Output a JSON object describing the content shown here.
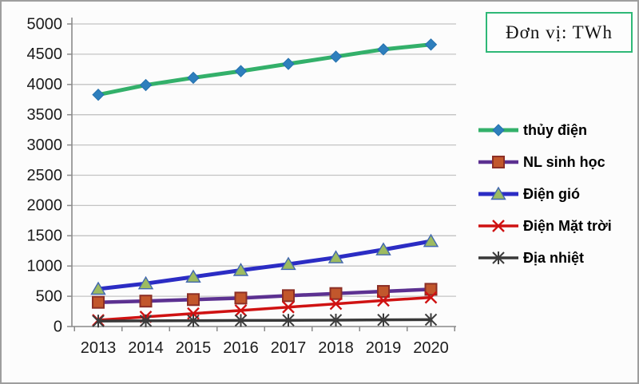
{
  "unit_box": {
    "label": "Đơn vị: TWh",
    "border_color": "#2eb877"
  },
  "chart_data": {
    "type": "line",
    "title": "",
    "xlabel": "",
    "ylabel": "",
    "unit": "TWh",
    "categories": [
      "2013",
      "2014",
      "2015",
      "2016",
      "2017",
      "2018",
      "2019",
      "2020"
    ],
    "series": [
      {
        "name": "thủy điện",
        "line_color": "#33b06a",
        "line_width": 5,
        "marker": "diamond",
        "marker_fill": "#2e7fbd",
        "marker_stroke": "#2470ad",
        "values": [
          3830,
          3990,
          4110,
          4220,
          4340,
          4460,
          4580,
          4660
        ]
      },
      {
        "name": "NL sinh học",
        "line_color": "#5c3191",
        "line_width": 4.5,
        "marker": "square",
        "marker_fill": "#c2572c",
        "marker_stroke": "#8c2f26",
        "values": [
          400,
          420,
          445,
          470,
          510,
          545,
          580,
          615
        ]
      },
      {
        "name": "Điện gió",
        "line_color": "#2b2cc4",
        "line_width": 5,
        "marker": "triangle",
        "marker_fill": "#9dbb61",
        "marker_stroke": "#4167b0",
        "values": [
          620,
          710,
          820,
          930,
          1030,
          1140,
          1270,
          1410
        ]
      },
      {
        "name": "Điện Mặt trời",
        "line_color": "#cf1212",
        "line_width": 3.5,
        "marker": "x",
        "marker_fill": "#cf1212",
        "marker_stroke": "#cf1212",
        "values": [
          105,
          160,
          215,
          265,
          320,
          375,
          430,
          480
        ]
      },
      {
        "name": "Địa nhiệt",
        "line_color": "#383838",
        "line_width": 3.5,
        "marker": "star",
        "marker_fill": "#383838",
        "marker_stroke": "#3c3c3c",
        "values": [
          90,
          94,
          97,
          100,
          103,
          106,
          110,
          113
        ]
      }
    ],
    "ylim": [
      0,
      5000
    ],
    "ytick_step": 500,
    "ytick_labels": [
      "0",
      "500",
      "1000",
      "1500",
      "2000",
      "2500",
      "3000",
      "3500",
      "4000",
      "4500",
      "5000"
    ],
    "grid": true,
    "legend_position": "right"
  }
}
